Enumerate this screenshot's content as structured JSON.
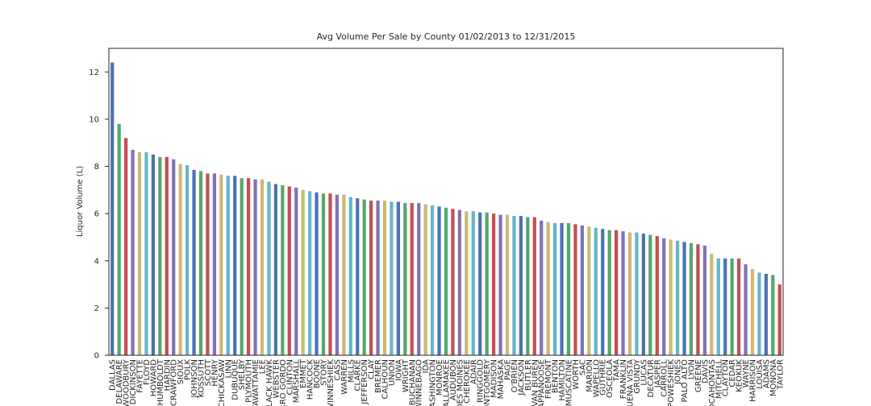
{
  "chart_data": {
    "type": "bar",
    "title": "Avg Volume Per Sale by County 01/02/2013 to 12/31/2015",
    "ylabel": "Liquor Volume (L)",
    "categories": [
      "DALLAS",
      "DELAWARE",
      "WOODBURY",
      "DICKINSON",
      "FAYETTE",
      "FLOYD",
      "HOWARD",
      "HUMBOLDT",
      "HARDIN",
      "CRAWFORD",
      "SIOUX",
      "POLK",
      "JOHNSON",
      "KOSSUTH",
      "SCOTT",
      "HENRY",
      "CHICKASAW",
      "LINN",
      "DUBUQUE",
      "SHELBY",
      "PLYMOUTH",
      "POTTAWATTAMIE",
      "LEE",
      "BLACK HAWK",
      "WEBSTER",
      "CERRO GORDO",
      "CLINTON",
      "MARSHALL",
      "EMMET",
      "HANCOCK",
      "BOONE",
      "STORY",
      "WINNESHIEK",
      "CASS",
      "WARREN",
      "MILLS",
      "CLARKE",
      "JEFFERSON",
      "CLAY",
      "BREMER",
      "CALHOUN",
      "UNION",
      "IOWA",
      "WRIGHT",
      "BUCHANAN",
      "WINNEBAGO",
      "IDA",
      "WASHINGTON",
      "MONROE",
      "ALLAMAKEE",
      "AUDUBON",
      "DES MOINES",
      "CHEROKEE",
      "ADAIR",
      "RINGGOLD",
      "MONTGOMERY",
      "MADISON",
      "MAHASKA",
      "PAGE",
      "O'BRIEN",
      "JACKSON",
      "BUTLER",
      "VAN BUREN",
      "APPANOOSE",
      "FREMONT",
      "BENTON",
      "HAMILTON",
      "MUSCATINE",
      "WORTH",
      "SAC",
      "MARION",
      "WAPELLO",
      "GUTHRIE",
      "OSCEOLA",
      "TAMA",
      "FRANKLIN",
      "BUENA VISTA",
      "GRUNDY",
      "LUCAS",
      "DECATUR",
      "JASPER",
      "CARROLL",
      "POWESHIEK",
      "JONES",
      "PALO ALTO",
      "LYON",
      "GREENE",
      "DAVIS",
      "POCAHONTAS",
      "MITCHELL",
      "CLAYTON",
      "CEDAR",
      "KEOKUK",
      "WAYNE",
      "HARRISON",
      "LOUISA",
      "ADAMS",
      "MONONA",
      "TAYLOR"
    ],
    "values": [
      12.4,
      9.8,
      9.2,
      8.7,
      8.6,
      8.6,
      8.5,
      8.4,
      8.4,
      8.3,
      8.1,
      8.05,
      7.85,
      7.8,
      7.7,
      7.7,
      7.65,
      7.6,
      7.6,
      7.5,
      7.5,
      7.45,
      7.45,
      7.35,
      7.25,
      7.2,
      7.15,
      7.1,
      7.0,
      6.95,
      6.9,
      6.85,
      6.85,
      6.8,
      6.8,
      6.7,
      6.65,
      6.6,
      6.55,
      6.55,
      6.55,
      6.5,
      6.5,
      6.45,
      6.45,
      6.45,
      6.4,
      6.35,
      6.3,
      6.25,
      6.2,
      6.15,
      6.1,
      6.1,
      6.05,
      6.05,
      6.0,
      5.95,
      5.95,
      5.9,
      5.9,
      5.85,
      5.85,
      5.7,
      5.65,
      5.6,
      5.6,
      5.6,
      5.55,
      5.5,
      5.45,
      5.4,
      5.35,
      5.3,
      5.3,
      5.25,
      5.2,
      5.2,
      5.15,
      5.1,
      5.05,
      4.95,
      4.9,
      4.85,
      4.8,
      4.75,
      4.7,
      4.65,
      4.3,
      4.1,
      4.1,
      4.1,
      4.1,
      3.85,
      3.65,
      3.5,
      3.45,
      3.4,
      3.0
    ],
    "colors": [
      "#4c72b0",
      "#55a868",
      "#c44e52",
      "#8172b2",
      "#ccb974",
      "#64b5cd"
    ],
    "ylim": [
      0,
      13
    ],
    "yticks": [
      0,
      2,
      4,
      6,
      8,
      10,
      12
    ],
    "grid": false
  }
}
